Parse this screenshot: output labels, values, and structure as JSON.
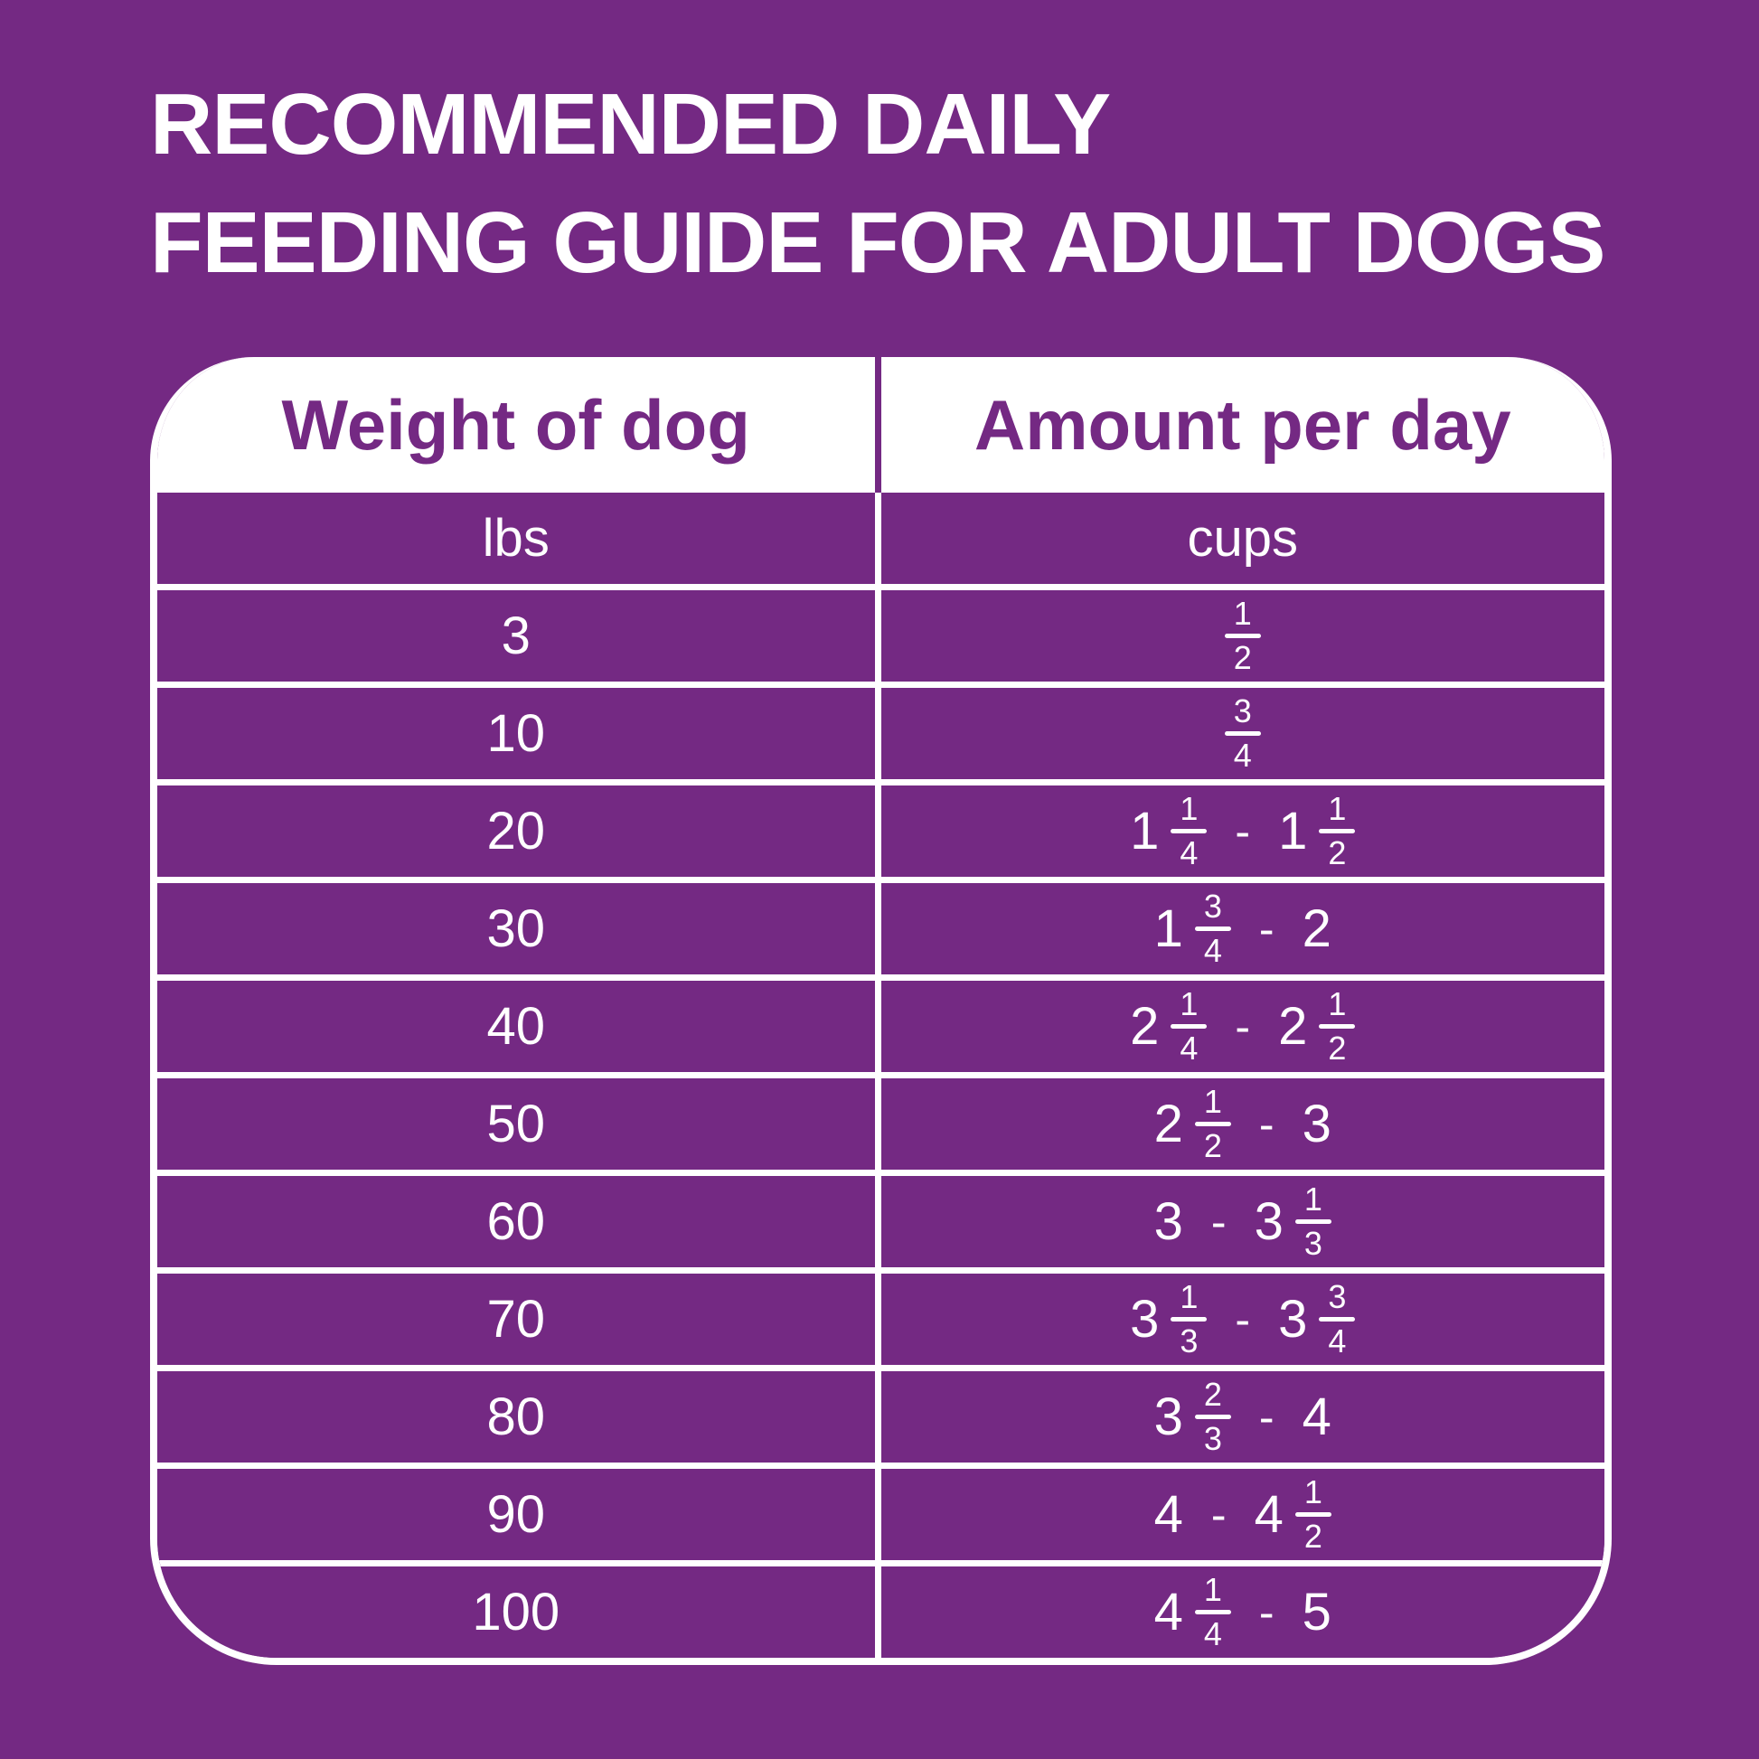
{
  "colors": {
    "background_purple": "#742983",
    "table_line_white": "#ffffff",
    "header_bg": "#ffffff",
    "header_text_purple": "#742983",
    "body_text_white": "#ffffff"
  },
  "title": {
    "line1": "RECOMMENDED DAILY",
    "line2": "FEEDING GUIDE FOR ADULT DOGS"
  },
  "table": {
    "headers": [
      "Weight of dog",
      "Amount per day"
    ],
    "units": [
      "lbs",
      "cups"
    ],
    "rows": [
      {
        "weight": "3",
        "amount": [
          "1/2"
        ]
      },
      {
        "weight": "10",
        "amount": [
          "3/4"
        ]
      },
      {
        "weight": "20",
        "amount": [
          "1",
          "1/4",
          "-",
          "1",
          "1/2"
        ]
      },
      {
        "weight": "30",
        "amount": [
          "1",
          "3/4",
          "-",
          "2"
        ]
      },
      {
        "weight": "40",
        "amount": [
          "2",
          "1/4",
          "-",
          "2",
          "1/2"
        ]
      },
      {
        "weight": "50",
        "amount": [
          "2",
          "1/2",
          "-",
          "3"
        ]
      },
      {
        "weight": "60",
        "amount": [
          "3",
          "-",
          "3",
          "1/3"
        ]
      },
      {
        "weight": "70",
        "amount": [
          "3",
          "1/3",
          "-",
          "3",
          "3/4"
        ]
      },
      {
        "weight": "80",
        "amount": [
          "3",
          "2/3",
          "-",
          "4"
        ]
      },
      {
        "weight": "90",
        "amount": [
          "4",
          "-",
          "4",
          "1/2"
        ]
      },
      {
        "weight": "100",
        "amount": [
          "4",
          "1/4",
          "-",
          "5"
        ]
      }
    ]
  }
}
